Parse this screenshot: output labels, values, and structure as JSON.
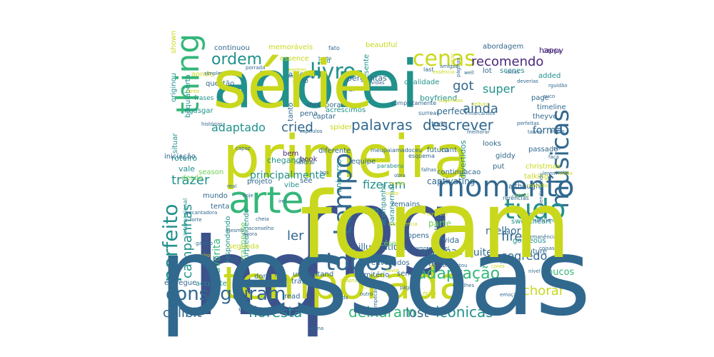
{
  "palette": {
    "navy": "#3b528b",
    "blue": "#31688e",
    "teal": "#21918c",
    "green": "#35b779",
    "lime": "#6ece58",
    "yellow": "#c9d81c",
    "purple": "#482878",
    "dark": "#440154",
    "teal2": "#26828e"
  },
  "words": [
    {
      "text": "hq",
      "color": "navy"
    },
    {
      "text": "rpg",
      "color": "navy"
    },
    {
      "text": "adorei",
      "color": "teal"
    },
    {
      "text": "primeira",
      "color": "yellow"
    },
    {
      "text": "temporada",
      "color": "yellow"
    },
    {
      "text": "arte",
      "color": "green"
    },
    {
      "text": "momento",
      "color": "blue"
    },
    {
      "text": "thing",
      "color": "green"
    },
    {
      "text": "músicas",
      "color": "blue"
    },
    {
      "text": "tudo",
      "color": "teal"
    },
    {
      "text": "todos",
      "color": "blue"
    },
    {
      "text": "tempo",
      "color": "blue"
    },
    {
      "text": "conseguiram",
      "color": "blue"
    },
    {
      "text": "perfeito",
      "color": "teal"
    },
    {
      "text": "livro",
      "color": "teal"
    },
    {
      "text": "cenas",
      "color": "yellow"
    },
    {
      "text": "ordem",
      "color": "teal"
    },
    {
      "text": "adaptação",
      "color": "green"
    },
    {
      "text": "floresta",
      "color": "teal"
    },
    {
      "text": "campanhas",
      "color": "teal"
    },
    {
      "text": "deixaram",
      "color": "green"
    },
    {
      "text": "icônicas",
      "color": "teal"
    },
    {
      "text": "lost",
      "color": "blue"
    },
    {
      "text": "cellbit",
      "color": "blue"
    },
    {
      "text": "recomendo",
      "color": "purple"
    },
    {
      "text": "descrever",
      "color": "blue"
    },
    {
      "text": "palavras",
      "color": "blue"
    },
    {
      "text": "ainda",
      "color": "blue"
    },
    {
      "text": "cried",
      "color": "blue"
    },
    {
      "text": "adaptado",
      "color": "teal"
    },
    {
      "text": "fizeram",
      "color": "teal"
    },
    {
      "text": "segredo",
      "color": "blue"
    },
    {
      "text": "fire",
      "color": "blue"
    },
    {
      "text": "chorar",
      "color": "yellow"
    },
    {
      "text": "ler",
      "color": "blue"
    },
    {
      "text": "got",
      "color": "blue"
    },
    {
      "text": "trazer",
      "color": "teal"
    },
    {
      "text": "principalmente",
      "color": "teal"
    },
    {
      "text": "melhor",
      "color": "blue"
    },
    {
      "text": "algumas",
      "color": "blue"
    },
    {
      "text": "super",
      "color": "teal"
    },
    {
      "text": "forma",
      "color": "blue"
    },
    {
      "text": "favorita",
      "color": "green"
    },
    {
      "text": "quite",
      "color": "blue"
    },
    {
      "text": "literalmente",
      "color": "lime"
    },
    {
      "text": "illustrations",
      "color": "blue"
    },
    {
      "text": "poucos",
      "color": "green"
    },
    {
      "text": "orgulhosa",
      "color": "blue"
    },
    {
      "text": "mim",
      "color": "teal"
    },
    {
      "text": "parte",
      "color": "lime"
    },
    {
      "text": "vida",
      "color": "blue"
    },
    {
      "text": "feel",
      "color": "blue"
    },
    {
      "text": "universo",
      "color": "teal"
    },
    {
      "text": "captivating",
      "color": "blue"
    },
    {
      "text": "divertidos",
      "color": "teal"
    },
    {
      "text": "perfect",
      "color": "blue"
    },
    {
      "text": "toda",
      "color": "blue"
    },
    {
      "text": "hour",
      "color": "blue"
    },
    {
      "text": "presente",
      "color": "teal"
    },
    {
      "text": "perguntas",
      "color": "blue"
    },
    {
      "text": "qualidade",
      "color": "teal"
    },
    {
      "text": "beautiful",
      "color": "yellow"
    },
    {
      "text": "memoráveis",
      "color": "yellow"
    },
    {
      "text": "continuou",
      "color": "blue"
    },
    {
      "text": "amo",
      "color": "blue"
    },
    {
      "text": "essence",
      "color": "yellow"
    },
    {
      "text": "abordagem",
      "color": "blue"
    },
    {
      "text": "scenes",
      "color": "teal"
    },
    {
      "text": "happy",
      "color": "purple"
    },
    {
      "text": "timeline",
      "color": "blue"
    },
    {
      "text": "page",
      "color": "blue"
    },
    {
      "text": "theyve",
      "color": "blue"
    },
    {
      "text": "added",
      "color": "teal"
    },
    {
      "text": "boyfriend",
      "color": "teal"
    },
    {
      "text": "incorporar",
      "color": "blue"
    },
    {
      "text": "questão",
      "color": "blue"
    },
    {
      "text": "aonde",
      "color": "yellow"
    },
    {
      "text": "boquiaberta",
      "color": "teal"
    },
    {
      "text": "originou",
      "color": "teal"
    },
    {
      "text": "shown",
      "color": "yellow"
    },
    {
      "text": "ngasgar",
      "color": "teal"
    },
    {
      "text": "roteiro",
      "color": "teal"
    },
    {
      "text": "vale",
      "color": "teal"
    },
    {
      "text": "iniciação",
      "color": "blue"
    },
    {
      "text": "desde",
      "color": "lime"
    },
    {
      "text": "season",
      "color": "lime"
    },
    {
      "text": "mundo",
      "color": "blue"
    },
    {
      "text": "tenta",
      "color": "blue"
    },
    {
      "text": "projeto",
      "color": "blue"
    },
    {
      "text": "vibe",
      "color": "teal"
    },
    {
      "text": "chegando",
      "color": "teal"
    },
    {
      "text": "bem",
      "color": "purple"
    },
    {
      "text": "book",
      "color": "purple"
    },
    {
      "text": "see",
      "color": "blue"
    },
    {
      "text": "surpreendendo",
      "color": "teal"
    },
    {
      "text": "respondendo",
      "color": "teal"
    },
    {
      "text": "segunda",
      "color": "yellow"
    },
    {
      "text": "believe",
      "color": "blue"
    },
    {
      "text": "dont",
      "color": "blue"
    },
    {
      "text": "understand",
      "color": "blue"
    },
    {
      "text": "orgulho",
      "color": "blue"
    },
    {
      "text": "accurate",
      "color": "teal"
    },
    {
      "text": "entregue",
      "color": "blue"
    },
    {
      "text": "read",
      "color": "blue"
    },
    {
      "text": "trás",
      "color": "blue"
    },
    {
      "text": "cemitério",
      "color": "blue"
    },
    {
      "text": "sendo",
      "color": "blue"
    },
    {
      "text": "didnt",
      "color": "blue"
    },
    {
      "text": "césar",
      "color": "lime"
    },
    {
      "text": "paranormal",
      "color": "teal"
    },
    {
      "text": "remains",
      "color": "blue"
    },
    {
      "text": "happens",
      "color": "blue"
    },
    {
      "text": "acompanhe",
      "color": "teal"
    },
    {
      "text": "sweetheart",
      "color": "teal"
    },
    {
      "text": "gorgeous",
      "color": "teal"
    },
    {
      "text": "future",
      "color": "blue"
    },
    {
      "text": "talking",
      "color": "yellow"
    },
    {
      "text": "although",
      "color": "blue"
    },
    {
      "text": "giddy",
      "color": "blue"
    },
    {
      "text": "put",
      "color": "blue"
    },
    {
      "text": "christmas",
      "color": "yellow"
    },
    {
      "text": "looks",
      "color": "blue"
    },
    {
      "text": "passado",
      "color": "blue"
    },
    {
      "text": "diferente",
      "color": "blue"
    },
    {
      "text": "futuro",
      "color": "blue"
    },
    {
      "text": "cant",
      "color": "blue"
    },
    {
      "text": "continuacao",
      "color": "blue"
    },
    {
      "text": "equipe",
      "color": "blue"
    },
    {
      "text": "acréscimos",
      "color": "teal"
    },
    {
      "text": "tanto",
      "color": "blue"
    },
    {
      "text": "pena",
      "color": "blue"
    },
    {
      "text": "captar",
      "color": "blue"
    },
    {
      "text": "spider",
      "color": "yellow"
    },
    {
      "text": "know",
      "color": "blue"
    },
    {
      "text": "envolvidos",
      "color": "blue"
    },
    {
      "text": "sério",
      "color": "blue"
    },
    {
      "text": "fato",
      "color": "blue"
    },
    {
      "text": "cold",
      "color": "teal"
    },
    {
      "text": "last",
      "color": "blue"
    },
    {
      "text": "última",
      "color": "purple"
    },
    {
      "text": "frases",
      "color": "teal"
    },
    {
      "text": "geral",
      "color": "lime"
    },
    {
      "text": "rerências",
      "color": "blue"
    },
    {
      "text": "internacional",
      "color": "teal"
    },
    {
      "text": "situar",
      "color": "teal"
    },
    {
      "text": "completamente",
      "color": "blue"
    },
    {
      "text": "surreal",
      "color": "blue"
    },
    {
      "text": "meupaiamadoceu",
      "color": "blue"
    },
    {
      "text": "esquema",
      "color": "blue"
    },
    {
      "text": "parabens",
      "color": "teal"
    },
    {
      "text": "natural",
      "color": "blue"
    },
    {
      "text": "real",
      "color": "blue"
    },
    {
      "text": "hoje",
      "color": "blue"
    },
    {
      "text": "irei",
      "color": "blue"
    },
    {
      "text": "aconselho",
      "color": "blue"
    },
    {
      "text": "gatilho",
      "color": "blue"
    },
    {
      "text": "criada",
      "color": "blue"
    },
    {
      "text": "outro",
      "color": "blue"
    },
    {
      "text": "impecável",
      "color": "blue"
    },
    {
      "text": "acima",
      "color": "blue"
    },
    {
      "text": "favor",
      "color": "yellow"
    },
    {
      "text": "consegue",
      "color": "blue"
    },
    {
      "text": "eleva",
      "color": "blue"
    },
    {
      "text": "nível",
      "color": "blue"
    },
    {
      "text": "coisas",
      "color": "blue"
    },
    {
      "text": "permanência",
      "color": "blue"
    },
    {
      "text": "apesar",
      "color": "blue"
    },
    {
      "text": "suficiente",
      "color": "blue"
    },
    {
      "text": "perdendomundo",
      "color": "blue"
    },
    {
      "text": "talvez",
      "color": "blue"
    },
    {
      "text": "melhorar",
      "color": "blue"
    },
    {
      "text": "marcantes",
      "color": "blue"
    },
    {
      "text": "sugeridas",
      "color": "yellow"
    },
    {
      "text": "leitura",
      "color": "yellow"
    },
    {
      "text": "páginas",
      "color": "blue"
    },
    {
      "text": "essência",
      "color": "yellow"
    },
    {
      "text": "well",
      "color": "blue"
    },
    {
      "text": "melhorado",
      "color": "blue"
    },
    {
      "text": "simplesmente",
      "color": "blue"
    },
    {
      "text": "porrada",
      "color": "blue"
    },
    {
      "text": "mídia",
      "color": "blue"
    },
    {
      "text": "suco",
      "color": "blue"
    },
    {
      "text": "perfeitas",
      "color": "blue"
    },
    {
      "text": "sei",
      "color": "blue"
    },
    {
      "text": "faça",
      "color": "blue"
    },
    {
      "text": "lerem",
      "color": "blue"
    },
    {
      "text": "obra",
      "color": "blue"
    },
    {
      "text": "muito",
      "color": "yellow"
    },
    {
      "text": "curto",
      "color": "yellow"
    },
    {
      "text": "experiência",
      "color": "yellow"
    },
    {
      "text": "ouvirem",
      "color": "yellow"
    },
    {
      "text": "compreensível",
      "color": "blue"
    },
    {
      "text": "conquistou",
      "color": "blue"
    },
    {
      "text": "queira",
      "color": "blue"
    },
    {
      "text": "lot",
      "color": "blue"
    },
    {
      "text": "exetter",
      "color": "yellow"
    },
    {
      "text": "rguidão",
      "color": "blue"
    },
    {
      "text": "cortar",
      "color": "yellow"
    },
    {
      "text": "deverias",
      "color": "blue"
    },
    {
      "text": "achei",
      "color": "yellow"
    },
    {
      "text": "encantadora",
      "color": "blue"
    },
    {
      "text": "forte",
      "color": "blue"
    },
    {
      "text": "falhas",
      "color": "blue"
    },
    {
      "text": "hqs",
      "color": "blue"
    },
    {
      "text": "mesmo",
      "color": "blue"
    },
    {
      "text": "capaz",
      "color": "blue"
    },
    {
      "text": "adaptar",
      "color": "yellow"
    },
    {
      "text": "nunca",
      "color": "blue"
    },
    {
      "text": "texto",
      "color": "blue"
    },
    {
      "text": "sinto",
      "color": "yellow"
    },
    {
      "text": "capítulos",
      "color": "blue"
    },
    {
      "text": "página",
      "color": "blue"
    },
    {
      "text": "cores",
      "color": "yellow"
    },
    {
      "text": "lindas",
      "color": "blue"
    },
    {
      "text": "cheia",
      "color": "blue"
    },
    {
      "text": "inteiro",
      "color": "yellow"
    },
    {
      "text": "detalhes",
      "color": "blue"
    },
    {
      "text": "vidas",
      "color": "blue"
    },
    {
      "text": "medo",
      "color": "yellow"
    },
    {
      "text": "todas",
      "color": "blue"
    },
    {
      "text": "histórias",
      "color": "blue"
    },
    {
      "text": "agora",
      "color": "blue"
    },
    {
      "text": "épica",
      "color": "yellow"
    },
    {
      "text": "emoção",
      "color": "blue"
    },
    {
      "text": "conexão",
      "color": "yellow"
    },
    {
      "text": "amigos",
      "color": "blue"
    },
    {
      "text": "pessoas",
      "color": "blue"
    },
    {
      "text": "foram",
      "color": "yellow"
    },
    {
      "text": "série",
      "color": "yellow"
    }
  ]
}
